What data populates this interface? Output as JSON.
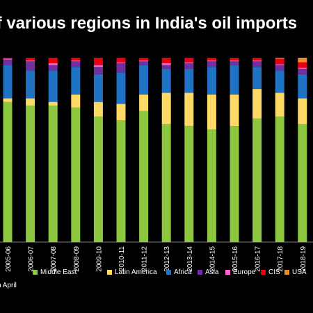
{
  "chart_data": {
    "type": "bar",
    "stacked": true,
    "title": "of various regions in India's oil imports",
    "categories": [
      "2005-06",
      "2006-07",
      "2007-08",
      "2008-09",
      "2009-10",
      "2010-11",
      "2011-12",
      "2012-13",
      "2013-14",
      "2014-15",
      "2015-16",
      "2016-17",
      "2017-18",
      "2018-19"
    ],
    "ylim": [
      0,
      100
    ],
    "grid": false,
    "legend_position": "bottom",
    "series": [
      {
        "name": "Middle East",
        "color": "#8dc63f",
        "values": [
          76,
          74,
          74,
          73,
          68,
          66,
          71,
          64,
          63,
          61,
          63,
          67,
          68,
          64
        ]
      },
      {
        "name": "Latin America",
        "color": "#ffd966",
        "values": [
          2,
          4,
          2,
          7,
          8,
          9,
          9,
          17,
          18,
          19,
          17,
          16,
          13,
          14
        ]
      },
      {
        "name": "Africa",
        "color": "#1f72c4",
        "values": [
          18,
          15,
          17,
          15,
          15,
          17,
          16,
          13,
          13,
          15,
          16,
          12,
          12,
          13
        ]
      },
      {
        "name": "Asia",
        "color": "#7030a0",
        "values": [
          3,
          5,
          3,
          3,
          4,
          5,
          2,
          2,
          3,
          3,
          2,
          3,
          3,
          3
        ]
      },
      {
        "name": "Europe",
        "color": "#ff66cc",
        "values": [
          0.5,
          0.5,
          1,
          0.5,
          1,
          0.5,
          0.5,
          1,
          0.5,
          0.5,
          0.5,
          0.5,
          0.5,
          0.5
        ]
      },
      {
        "name": "CIS",
        "color": "#e60012",
        "values": [
          0.5,
          1.5,
          3,
          1.5,
          4,
          2.5,
          1.5,
          3,
          2.5,
          1.5,
          1.5,
          1.5,
          3,
          3
        ]
      },
      {
        "name": "USA",
        "color": "#f28c28",
        "values": [
          0,
          0,
          0,
          0,
          0,
          0,
          0,
          0,
          0,
          0,
          0,
          0,
          0.5,
          2.5
        ]
      }
    ]
  },
  "note": "n April"
}
